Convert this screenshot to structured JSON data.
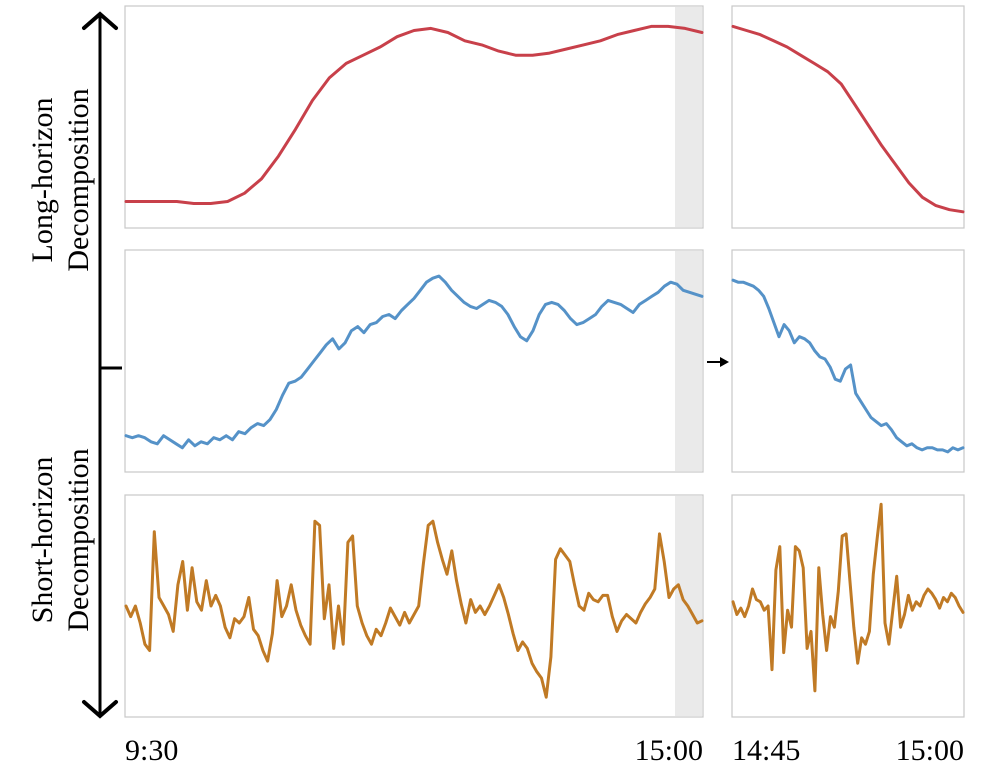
{
  "labels": {
    "long_horizon": [
      "Long-horizon",
      "Decomposition"
    ],
    "short_horizon": [
      "Short-horizon",
      "Decomposition"
    ]
  },
  "chart_data": [
    {
      "type": "line",
      "panel": "long-history",
      "x_range": [
        "9:30",
        "15:00"
      ],
      "ylim": [
        0,
        1
      ],
      "color": "#c8404a",
      "values": [
        0.09,
        0.09,
        0.09,
        0.09,
        0.08,
        0.08,
        0.09,
        0.13,
        0.2,
        0.31,
        0.44,
        0.58,
        0.69,
        0.76,
        0.8,
        0.84,
        0.89,
        0.92,
        0.93,
        0.91,
        0.87,
        0.85,
        0.82,
        0.8,
        0.8,
        0.81,
        0.83,
        0.85,
        0.87,
        0.9,
        0.92,
        0.94,
        0.94,
        0.93,
        0.91
      ]
    },
    {
      "type": "line",
      "panel": "long-forecast",
      "ylim": [
        0,
        1
      ],
      "color": "#c8404a",
      "values": [
        0.94,
        0.92,
        0.9,
        0.87,
        0.84,
        0.8,
        0.76,
        0.72,
        0.66,
        0.56,
        0.46,
        0.36,
        0.27,
        0.18,
        0.11,
        0.07,
        0.05,
        0.04
      ]
    },
    {
      "type": "line",
      "panel": "mid-history",
      "ylim": [
        0,
        1
      ],
      "color": "#5592c8",
      "values": [
        0.14,
        0.13,
        0.14,
        0.13,
        0.11,
        0.1,
        0.14,
        0.12,
        0.1,
        0.08,
        0.12,
        0.09,
        0.11,
        0.1,
        0.13,
        0.12,
        0.14,
        0.12,
        0.16,
        0.15,
        0.18,
        0.2,
        0.19,
        0.22,
        0.27,
        0.34,
        0.4,
        0.41,
        0.43,
        0.47,
        0.51,
        0.55,
        0.59,
        0.62,
        0.57,
        0.6,
        0.66,
        0.68,
        0.65,
        0.69,
        0.7,
        0.73,
        0.74,
        0.72,
        0.76,
        0.79,
        0.82,
        0.86,
        0.9,
        0.92,
        0.93,
        0.9,
        0.86,
        0.83,
        0.8,
        0.78,
        0.77,
        0.79,
        0.81,
        0.8,
        0.78,
        0.74,
        0.68,
        0.63,
        0.61,
        0.66,
        0.74,
        0.79,
        0.8,
        0.79,
        0.76,
        0.72,
        0.69,
        0.7,
        0.72,
        0.74,
        0.78,
        0.81,
        0.8,
        0.79,
        0.77,
        0.75,
        0.79,
        0.81,
        0.83,
        0.85,
        0.88,
        0.9,
        0.89,
        0.86,
        0.85,
        0.84,
        0.83
      ]
    },
    {
      "type": "line",
      "panel": "mid-forecast",
      "ylim": [
        0,
        1
      ],
      "color": "#5592c8",
      "values": [
        0.91,
        0.9,
        0.9,
        0.89,
        0.88,
        0.86,
        0.83,
        0.77,
        0.7,
        0.63,
        0.69,
        0.66,
        0.6,
        0.63,
        0.62,
        0.6,
        0.56,
        0.53,
        0.52,
        0.48,
        0.42,
        0.41,
        0.47,
        0.49,
        0.35,
        0.31,
        0.27,
        0.23,
        0.21,
        0.19,
        0.2,
        0.17,
        0.13,
        0.11,
        0.09,
        0.1,
        0.08,
        0.07,
        0.08,
        0.08,
        0.07,
        0.07,
        0.06,
        0.08,
        0.07,
        0.08
      ]
    },
    {
      "type": "line",
      "panel": "short-history",
      "ylim": [
        0,
        1
      ],
      "color": "#c07a25",
      "values": [
        0.5,
        0.45,
        0.5,
        0.42,
        0.32,
        0.29,
        0.85,
        0.54,
        0.5,
        0.46,
        0.38,
        0.6,
        0.71,
        0.48,
        0.68,
        0.52,
        0.48,
        0.62,
        0.5,
        0.55,
        0.5,
        0.4,
        0.35,
        0.44,
        0.42,
        0.45,
        0.54,
        0.39,
        0.36,
        0.29,
        0.24,
        0.37,
        0.62,
        0.45,
        0.5,
        0.6,
        0.48,
        0.41,
        0.36,
        0.32,
        0.9,
        0.88,
        0.44,
        0.6,
        0.3,
        0.5,
        0.32,
        0.8,
        0.83,
        0.5,
        0.42,
        0.36,
        0.32,
        0.39,
        0.36,
        0.42,
        0.49,
        0.45,
        0.41,
        0.47,
        0.42,
        0.46,
        0.5,
        0.7,
        0.88,
        0.9,
        0.8,
        0.72,
        0.65,
        0.76,
        0.62,
        0.51,
        0.42,
        0.53,
        0.47,
        0.5,
        0.46,
        0.5,
        0.55,
        0.6,
        0.54,
        0.46,
        0.37,
        0.29,
        0.33,
        0.3,
        0.23,
        0.19,
        0.16,
        0.07,
        0.26,
        0.72,
        0.77,
        0.74,
        0.71,
        0.6,
        0.5,
        0.48,
        0.56,
        0.53,
        0.52,
        0.55,
        0.55,
        0.45,
        0.38,
        0.43,
        0.46,
        0.44,
        0.42,
        0.47,
        0.51,
        0.54,
        0.58,
        0.84,
        0.71,
        0.54,
        0.58,
        0.6,
        0.53,
        0.5,
        0.46,
        0.42,
        0.43
      ]
    },
    {
      "type": "line",
      "panel": "short-forecast",
      "ylim": [
        0,
        1
      ],
      "color": "#c07a25",
      "values": [
        0.52,
        0.46,
        0.49,
        0.45,
        0.5,
        0.58,
        0.53,
        0.52,
        0.48,
        0.5,
        0.2,
        0.67,
        0.78,
        0.28,
        0.48,
        0.4,
        0.78,
        0.76,
        0.68,
        0.3,
        0.38,
        0.1,
        0.68,
        0.46,
        0.29,
        0.45,
        0.4,
        0.57,
        0.83,
        0.84,
        0.62,
        0.4,
        0.23,
        0.35,
        0.32,
        0.38,
        0.65,
        0.82,
        0.98,
        0.42,
        0.32,
        0.48,
        0.64,
        0.4,
        0.46,
        0.55,
        0.48,
        0.52,
        0.5,
        0.55,
        0.58,
        0.56,
        0.53,
        0.49,
        0.54,
        0.52,
        0.56,
        0.54,
        0.5,
        0.47
      ]
    }
  ],
  "x_ticks": {
    "history": [
      "9:30",
      "15:00"
    ],
    "forecast": [
      "14:45",
      "15:00"
    ]
  }
}
